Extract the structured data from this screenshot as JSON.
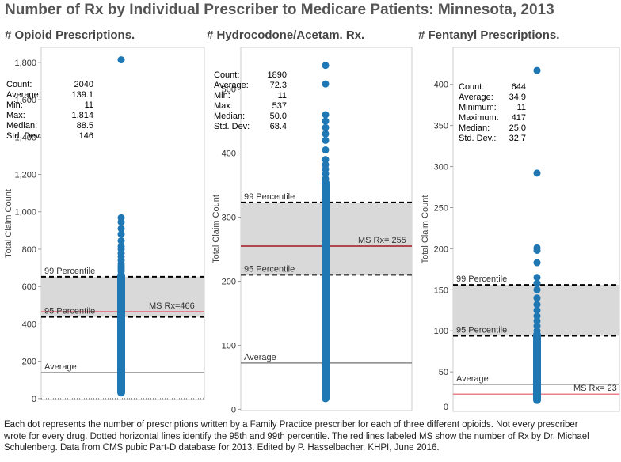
{
  "title": "Number of Rx by Individual Prescriber to Medicare Patients: Minnesota, 2013",
  "footer": [
    "Each dot represents the number of prescriptions written by a Family Practice prescriber for each of three different opioids. Not every prescriber",
    "wrote for every drug. Dotted horizontal lines identify the 95th and 99th percentile. The red lines labeled MS show the number of Rx by Dr. Michael",
    "Schulenberg. Data from CMS pubic Part-D database for 2013.  Edited by P. Hasselbacher, KHPI, June 2016."
  ],
  "colors": {
    "dot": "#1f77b4",
    "ms_line": "#e8808a",
    "ms_line_dark": "#a01820",
    "band": "#d9d9d9",
    "average_line": "#888888"
  },
  "chart_data": [
    {
      "type": "scatter",
      "title": "# Opioid Prescriptions.",
      "ylabel": "Total Claim Count",
      "ylim": [
        -5,
        1880
      ],
      "yticks": [
        0,
        200,
        400,
        600,
        800,
        1000,
        1200,
        1400,
        1600,
        1800
      ],
      "ytick_labels": [
        "0",
        "200",
        "400",
        "600",
        "800",
        "1,000",
        "1,200",
        "1,400",
        "1,600",
        "1,800"
      ],
      "points": [
        1814,
        968,
        945,
        910,
        880,
        845,
        815,
        800,
        778,
        760,
        740,
        722,
        710,
        700,
        690,
        680
      ],
      "dense_range": [
        11,
        680
      ],
      "stats": [
        {
          "label": "Count:",
          "value": "2040"
        },
        {
          "label": "Average:",
          "value": "139.1"
        },
        {
          "label": "Min:",
          "value": "11"
        },
        {
          "label": "Max:",
          "value": "1,814"
        },
        {
          "label": "Median:",
          "value": "88.5"
        },
        {
          "label": "Std. Dev:",
          "value": "146"
        }
      ],
      "p99": {
        "label": "99 Percentile",
        "value": 652
      },
      "p95": {
        "label": "95 Percentile",
        "value": 437
      },
      "average": {
        "label": "Average",
        "value": 139.1
      },
      "ms": {
        "label": "MS Rx=466",
        "value": 466,
        "label_side": "above",
        "color": "#e8808a"
      },
      "zero_dotted": true
    },
    {
      "type": "scatter",
      "title": "# Hydrocodone/Acetam. Rx.",
      "ylabel": "Total Claim Count",
      "ylim": [
        -2,
        565
      ],
      "yticks": [
        0,
        100,
        200,
        300,
        400,
        500
      ],
      "ytick_labels": [
        "0",
        "100",
        "200",
        "300",
        "400",
        "500"
      ],
      "points": [
        537,
        508,
        460,
        450,
        440,
        430,
        420,
        405,
        390,
        382,
        375,
        368,
        360
      ],
      "dense_range": [
        11,
        360
      ],
      "stats": [
        {
          "label": "Count:",
          "value": "1890"
        },
        {
          "label": "Average:",
          "value": "72.3"
        },
        {
          "label": "Min:",
          "value": "11"
        },
        {
          "label": "Max:",
          "value": "537"
        },
        {
          "label": "Median:",
          "value": "50.0"
        },
        {
          "label": "Std. Dev:",
          "value": "68.4"
        }
      ],
      "p99": {
        "label": "99 Percentile",
        "value": 323
      },
      "p95": {
        "label": "95 Percentile",
        "value": 210
      },
      "average": {
        "label": "Average",
        "value": 72.3
      },
      "ms": {
        "label": "MS Rx= 255",
        "value": 255,
        "label_side": "above",
        "color": "#a01820"
      },
      "zero_dotted": false
    },
    {
      "type": "scatter",
      "title": "# Fentanyl Prescriptions.",
      "ylabel": "Total Claim Count",
      "ylim": [
        2,
        445
      ],
      "yticks": [
        50,
        100,
        150,
        200,
        250,
        300,
        350,
        400
      ],
      "ytick_labels": [
        "50",
        "100",
        "150",
        "200",
        "250",
        "300",
        "350",
        "400"
      ],
      "extra_tick": {
        "label": "0",
        "value": 8
      },
      "points": [
        417,
        292,
        201,
        198,
        183,
        165,
        158,
        150,
        140,
        132,
        125,
        118,
        112,
        106,
        100
      ],
      "dense_range": [
        11,
        100
      ],
      "stats": [
        {
          "label": "Count:",
          "value": "644"
        },
        {
          "label": "Average:",
          "value": "34.9"
        },
        {
          "label": "Minimum:",
          "value": "11"
        },
        {
          "label": "Maximum:",
          "value": "417"
        },
        {
          "label": "Median:",
          "value": "25.0"
        },
        {
          "label": "Std. Dev.:",
          "value": "32.7"
        }
      ],
      "p99": {
        "label": "99 Percentile",
        "value": 156
      },
      "p95": {
        "label": "95 Percentile",
        "value": 94
      },
      "average": {
        "label": "Average",
        "value": 34.9
      },
      "ms": {
        "label": "MS Rx= 23",
        "value": 23,
        "label_side": "above",
        "color": "#e8808a"
      },
      "zero_dotted": false
    }
  ]
}
